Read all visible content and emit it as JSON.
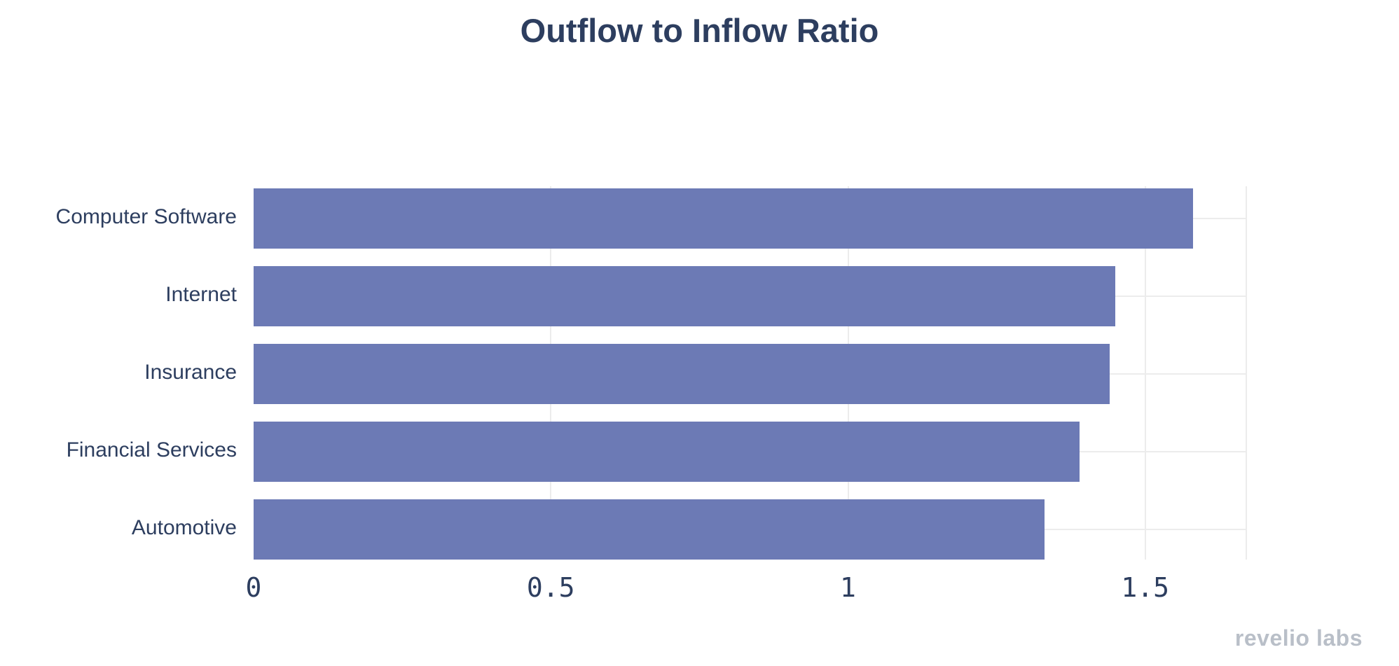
{
  "title": "Outflow to Inflow Ratio",
  "watermark": "revelio labs",
  "colors": {
    "bar": "#6c7ab5",
    "title_text": "#2d3e5f",
    "axis_text": "#2d3e5f",
    "gridline": "#ececec",
    "watermark_text": "#b9bfc8",
    "background": "#ffffff"
  },
  "chart_data": {
    "type": "bar",
    "orientation": "horizontal",
    "title": "Outflow to Inflow Ratio",
    "categories": [
      "Computer Software",
      "Internet",
      "Insurance",
      "Financial Services",
      "Automotive"
    ],
    "values": [
      1.58,
      1.45,
      1.44,
      1.39,
      1.33
    ],
    "xlabel": "",
    "ylabel": "",
    "xlim": [
      0,
      1.67
    ],
    "xticks": [
      0,
      0.5,
      1,
      1.5
    ],
    "xtick_labels": [
      "0",
      "0.5",
      "1",
      "1.5"
    ],
    "grid": true,
    "legend": false
  }
}
